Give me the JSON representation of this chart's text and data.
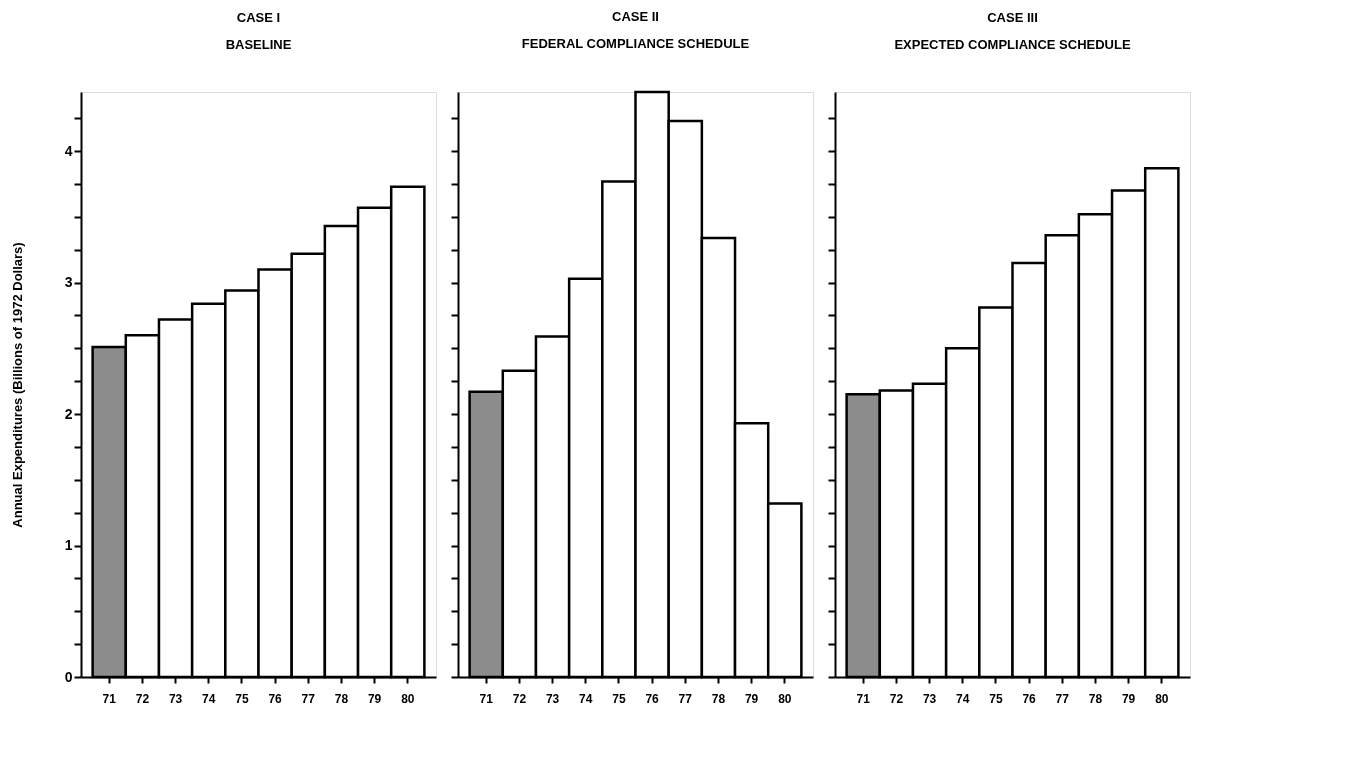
{
  "chart_data": [
    {
      "type": "bar",
      "title": "CASE I",
      "subtitle": "BASELINE",
      "ylabel": "Annual Expenditures (Billions of 1972 Dollars)",
      "categories": [
        "71",
        "72",
        "73",
        "74",
        "75",
        "76",
        "77",
        "78",
        "79",
        "80"
      ],
      "values": [
        2.51,
        2.6,
        2.72,
        2.84,
        2.94,
        3.1,
        3.22,
        3.43,
        3.57,
        3.73
      ],
      "colors": [
        "#8c8c8c",
        "#ffffff",
        "#ffffff",
        "#ffffff",
        "#ffffff",
        "#ffffff",
        "#ffffff",
        "#ffffff",
        "#ffffff",
        "#ffffff"
      ],
      "ylim": [
        0,
        4.45
      ],
      "yticks": [
        0,
        {
          "value": 0.25,
          "label": null
        },
        {
          "value": 0.5,
          "label": null
        },
        {
          "value": 0.75,
          "label": null
        },
        1,
        {
          "value": 1.25,
          "label": null
        },
        {
          "value": 1.5,
          "label": null
        },
        {
          "value": 1.75,
          "label": null
        },
        2,
        {
          "value": 2.25,
          "label": null
        },
        {
          "value": 2.5,
          "label": null
        },
        {
          "value": 2.75,
          "label": null
        },
        3,
        {
          "value": 3.25,
          "label": null
        },
        {
          "value": 3.5,
          "label": null
        },
        {
          "value": 3.75,
          "label": null
        },
        4,
        {
          "value": 4.25,
          "label": null
        }
      ],
      "grid": false,
      "legend": false
    },
    {
      "type": "bar",
      "title": "CASE II",
      "subtitle": "FEDERAL COMPLIANCE SCHEDULE",
      "categories": [
        "71",
        "72",
        "73",
        "74",
        "75",
        "76",
        "77",
        "78",
        "79",
        "80"
      ],
      "values": [
        2.17,
        2.33,
        2.59,
        3.03,
        3.77,
        4.45,
        4.23,
        3.34,
        1.93,
        1.32
      ],
      "colors": [
        "#8c8c8c",
        "#ffffff",
        "#ffffff",
        "#ffffff",
        "#ffffff",
        "#ffffff",
        "#ffffff",
        "#ffffff",
        "#ffffff",
        "#ffffff"
      ],
      "ylim": [
        0,
        4.45
      ],
      "yticks": [
        0,
        {
          "value": 0.25,
          "label": null
        },
        {
          "value": 0.5,
          "label": null
        },
        {
          "value": 0.75,
          "label": null
        },
        1,
        {
          "value": 1.25,
          "label": null
        },
        {
          "value": 1.5,
          "label": null
        },
        {
          "value": 1.75,
          "label": null
        },
        2,
        {
          "value": 2.25,
          "label": null
        },
        {
          "value": 2.5,
          "label": null
        },
        {
          "value": 2.75,
          "label": null
        },
        3,
        {
          "value": 3.25,
          "label": null
        },
        {
          "value": 3.5,
          "label": null
        },
        {
          "value": 3.75,
          "label": null
        },
        4,
        {
          "value": 4.25,
          "label": null
        }
      ],
      "tick_labels": "x",
      "grid": false,
      "legend": false
    },
    {
      "type": "bar",
      "title": "CASE III",
      "subtitle": "EXPECTED COMPLIANCE SCHEDULE",
      "categories": [
        "71",
        "72",
        "73",
        "74",
        "75",
        "76",
        "77",
        "78",
        "79",
        "80"
      ],
      "values": [
        2.15,
        2.18,
        2.23,
        2.5,
        2.81,
        3.15,
        3.36,
        3.52,
        3.7,
        3.87
      ],
      "colors": [
        "#8c8c8c",
        "#ffffff",
        "#ffffff",
        "#ffffff",
        "#ffffff",
        "#ffffff",
        "#ffffff",
        "#ffffff",
        "#ffffff",
        "#ffffff"
      ],
      "ylim": [
        0,
        4.45
      ],
      "yticks": [
        0,
        {
          "value": 0.25,
          "label": null
        },
        {
          "value": 0.5,
          "label": null
        },
        {
          "value": 0.75,
          "label": null
        },
        1,
        {
          "value": 1.25,
          "label": null
        },
        {
          "value": 1.5,
          "label": null
        },
        {
          "value": 1.75,
          "label": null
        },
        2,
        {
          "value": 2.25,
          "label": null
        },
        {
          "value": 2.5,
          "label": null
        },
        {
          "value": 2.75,
          "label": null
        },
        3,
        {
          "value": 3.25,
          "label": null
        },
        {
          "value": 3.5,
          "label": null
        },
        {
          "value": 3.75,
          "label": null
        },
        4,
        {
          "value": 4.25,
          "label": null
        }
      ],
      "tick_labels": "x",
      "grid": false,
      "legend": false
    }
  ]
}
